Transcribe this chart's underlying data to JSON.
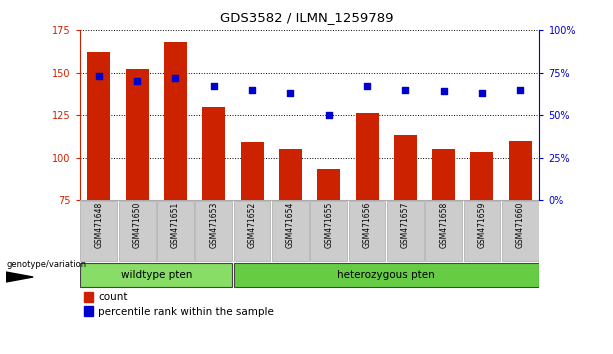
{
  "title": "GDS3582 / ILMN_1259789",
  "samples": [
    "GSM471648",
    "GSM471650",
    "GSM471651",
    "GSM471653",
    "GSM471652",
    "GSM471654",
    "GSM471655",
    "GSM471656",
    "GSM471657",
    "GSM471658",
    "GSM471659",
    "GSM471660"
  ],
  "bar_values": [
    162,
    152,
    168,
    130,
    109,
    105,
    93,
    126,
    113,
    105,
    103,
    110
  ],
  "percentile_values": [
    73,
    70,
    72,
    67,
    65,
    63,
    50,
    67,
    65,
    64,
    63,
    65
  ],
  "ylim_left": [
    75,
    175
  ],
  "ylim_right": [
    0,
    100
  ],
  "yticks_left": [
    75,
    100,
    125,
    150,
    175
  ],
  "yticks_right": [
    0,
    25,
    50,
    75,
    100
  ],
  "bar_color": "#cc2200",
  "scatter_color": "#0000cc",
  "group1_label": "wildtype pten",
  "group2_label": "heterozygous pten",
  "group1_color": "#88dd66",
  "group2_color": "#66cc44",
  "group1_count": 4,
  "group2_count": 8,
  "geno_label": "genotype/variation",
  "legend_count_label": "count",
  "legend_pct_label": "percentile rank within the sample",
  "sample_box_color": "#cccccc",
  "sample_box_edge": "#aaaaaa"
}
